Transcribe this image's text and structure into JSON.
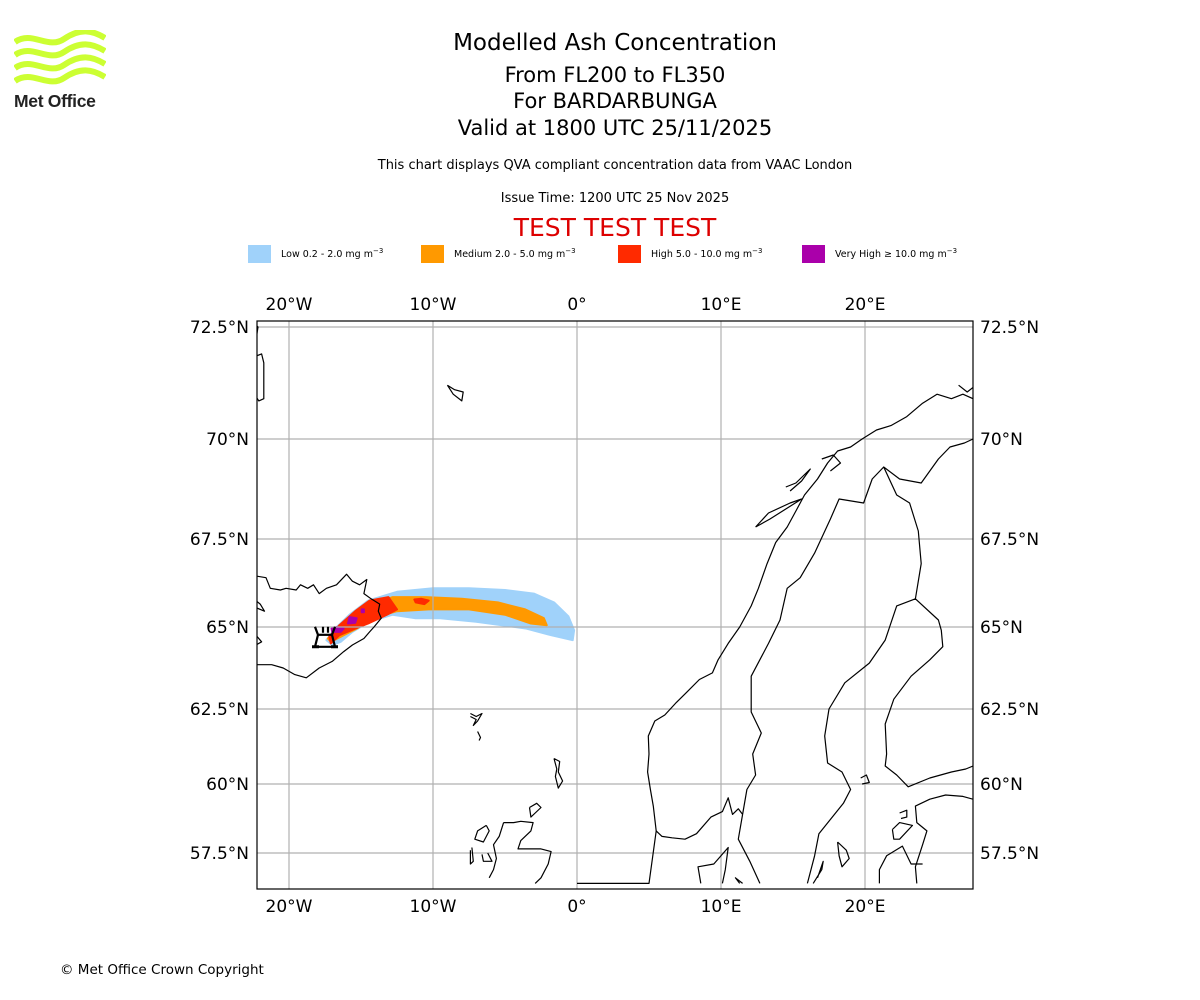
{
  "logo": {
    "name": "Met Office",
    "wave_color": "#ccff33"
  },
  "header": {
    "title": "Modelled Ash Concentration",
    "levels": "From FL200 to FL350",
    "volcano": "For BARDARBUNGA",
    "valid": "Valid at 1800 UTC 25/11/2025",
    "description": "This chart displays QVA compliant concentration data from VAAC London",
    "issue_time": "Issue Time: 1200 UTC 25 Nov 2025",
    "test_banner": "TEST TEST TEST",
    "test_color": "#dd0000"
  },
  "legend": [
    {
      "label": "Low 0.2 - 2.0 mg m",
      "exp": "−3",
      "color": "#a0d2fa"
    },
    {
      "label": "Medium 2.0 - 5.0 mg m",
      "exp": "−3",
      "color": "#ff9900"
    },
    {
      "label": "High 5.0 - 10.0 mg m",
      "exp": "−3",
      "color": "#ff2a00"
    },
    {
      "label": "Very High ≥ 10.0 mg m",
      "exp": "−3",
      "color": "#aa00aa"
    }
  ],
  "chart_data": {
    "type": "map",
    "title": "Modelled Ash Concentration",
    "extent": {
      "lon": [
        -22.3,
        27.5
      ],
      "lat": [
        56.4,
        72.7
      ]
    },
    "grid": true,
    "lon_ticks": [
      {
        "value": -20,
        "label": "20°W"
      },
      {
        "value": -10,
        "label": "10°W"
      },
      {
        "value": 0,
        "label": "0°"
      },
      {
        "value": 10,
        "label": "10°E"
      },
      {
        "value": 20,
        "label": "20°E"
      }
    ],
    "lat_ticks": [
      {
        "value": 72.5,
        "label": "72.5°N"
      },
      {
        "value": 70,
        "label": "70°N"
      },
      {
        "value": 67.5,
        "label": "67.5°N"
      },
      {
        "value": 65,
        "label": "65°N"
      },
      {
        "value": 62.5,
        "label": "62.5°N"
      },
      {
        "value": 60,
        "label": "60°N"
      },
      {
        "value": 57.5,
        "label": "57.5°N"
      }
    ],
    "volcano": {
      "name": "BARDARBUNGA",
      "lon": -17.5,
      "lat": 64.64,
      "symbol": "volcano-icon"
    },
    "ash_regions": [
      {
        "level": "low",
        "color": "#a0d2fa",
        "polygon": [
          [
            -17.0,
            64.45
          ],
          [
            -16.4,
            64.55
          ],
          [
            -15.6,
            64.85
          ],
          [
            -14.4,
            65.15
          ],
          [
            -12.8,
            65.35
          ],
          [
            -11.2,
            65.25
          ],
          [
            -9.5,
            65.25
          ],
          [
            -7.0,
            65.15
          ],
          [
            -5.2,
            65.05
          ],
          [
            -3.5,
            64.95
          ],
          [
            -1.8,
            64.75
          ],
          [
            -0.3,
            64.6
          ],
          [
            -0.2,
            64.9
          ],
          [
            -0.6,
            65.3
          ],
          [
            -1.6,
            65.7
          ],
          [
            -3.0,
            65.95
          ],
          [
            -5.0,
            66.05
          ],
          [
            -7.5,
            66.1
          ],
          [
            -10.0,
            66.1
          ],
          [
            -12.5,
            66.0
          ],
          [
            -14.5,
            65.75
          ],
          [
            -15.8,
            65.35
          ],
          [
            -16.8,
            64.95
          ],
          [
            -17.4,
            64.6
          ]
        ]
      },
      {
        "level": "medium",
        "color": "#ff9900",
        "polygon": [
          [
            -17.1,
            64.55
          ],
          [
            -16.2,
            64.75
          ],
          [
            -15.3,
            64.95
          ],
          [
            -14.2,
            65.25
          ],
          [
            -12.5,
            65.45
          ],
          [
            -10.3,
            65.5
          ],
          [
            -7.5,
            65.5
          ],
          [
            -5.0,
            65.35
          ],
          [
            -3.2,
            65.1
          ],
          [
            -2.1,
            65.05
          ],
          [
            -2.3,
            65.25
          ],
          [
            -3.6,
            65.5
          ],
          [
            -5.5,
            65.7
          ],
          [
            -8.0,
            65.8
          ],
          [
            -10.5,
            65.85
          ],
          [
            -12.8,
            65.85
          ],
          [
            -14.2,
            65.65
          ],
          [
            -15.5,
            65.3
          ],
          [
            -16.6,
            64.95
          ],
          [
            -17.3,
            64.65
          ]
        ]
      },
      {
        "level": "high",
        "color": "#ff2a00",
        "polygon": [
          [
            -17.1,
            64.5
          ],
          [
            -16.5,
            64.75
          ],
          [
            -15.4,
            64.95
          ],
          [
            -14.5,
            65.1
          ],
          [
            -13.2,
            65.35
          ],
          [
            -12.5,
            65.5
          ],
          [
            -13.1,
            65.85
          ],
          [
            -14.4,
            65.75
          ],
          [
            -15.4,
            65.45
          ],
          [
            -16.5,
            65.05
          ],
          [
            -17.2,
            64.7
          ]
        ]
      },
      {
        "level": "high",
        "color": "#ff2a00",
        "polygon": [
          [
            -11.2,
            65.7
          ],
          [
            -10.6,
            65.65
          ],
          [
            -10.3,
            65.75
          ],
          [
            -10.8,
            65.8
          ],
          [
            -11.3,
            65.78
          ]
        ]
      },
      {
        "level": "very-high",
        "color": "#aa00aa",
        "polygon": [
          [
            -17.0,
            64.85
          ],
          [
            -16.4,
            64.85
          ],
          [
            -16.2,
            64.95
          ],
          [
            -16.7,
            65.0
          ],
          [
            -17.05,
            64.95
          ]
        ]
      },
      {
        "level": "very-high",
        "color": "#aa00aa",
        "polygon": [
          [
            -15.9,
            65.1
          ],
          [
            -15.4,
            65.12
          ],
          [
            -15.3,
            65.25
          ],
          [
            -15.8,
            65.28
          ]
        ]
      },
      {
        "level": "very-high",
        "color": "#aa00aa",
        "polygon": [
          [
            -14.95,
            65.42
          ],
          [
            -14.8,
            65.42
          ],
          [
            -14.8,
            65.5
          ],
          [
            -14.95,
            65.5
          ]
        ]
      }
    ]
  },
  "footer": {
    "copyright": "© Met Office Crown Copyright"
  }
}
